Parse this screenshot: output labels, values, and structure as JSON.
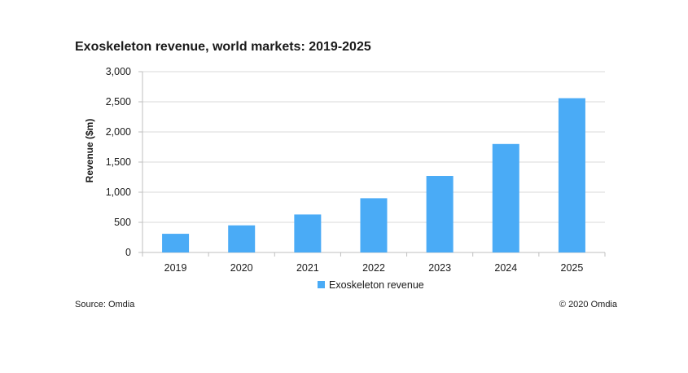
{
  "chart_data": {
    "type": "bar",
    "title": "Exoskeleton revenue, world markets: 2019-2025",
    "xlabel": "",
    "ylabel": "Revenue ($m)",
    "categories": [
      "2019",
      "2020",
      "2021",
      "2022",
      "2023",
      "2024",
      "2025"
    ],
    "series": [
      {
        "name": "Exoskeleton revenue",
        "values": [
          310,
          450,
          630,
          900,
          1270,
          1800,
          2560
        ],
        "color": "#4aabf6"
      }
    ],
    "ylim": [
      0,
      3000
    ],
    "yticks": [
      0,
      500,
      1000,
      1500,
      2000,
      2500,
      3000
    ],
    "ytick_labels": [
      "0",
      "500",
      "1,000",
      "1,500",
      "2,000",
      "2,500",
      "3,000"
    ],
    "grid": true,
    "legend_position": "bottom"
  },
  "notes": {
    "source": "Source: Omdia",
    "copyright": "© 2020 Omdia"
  }
}
